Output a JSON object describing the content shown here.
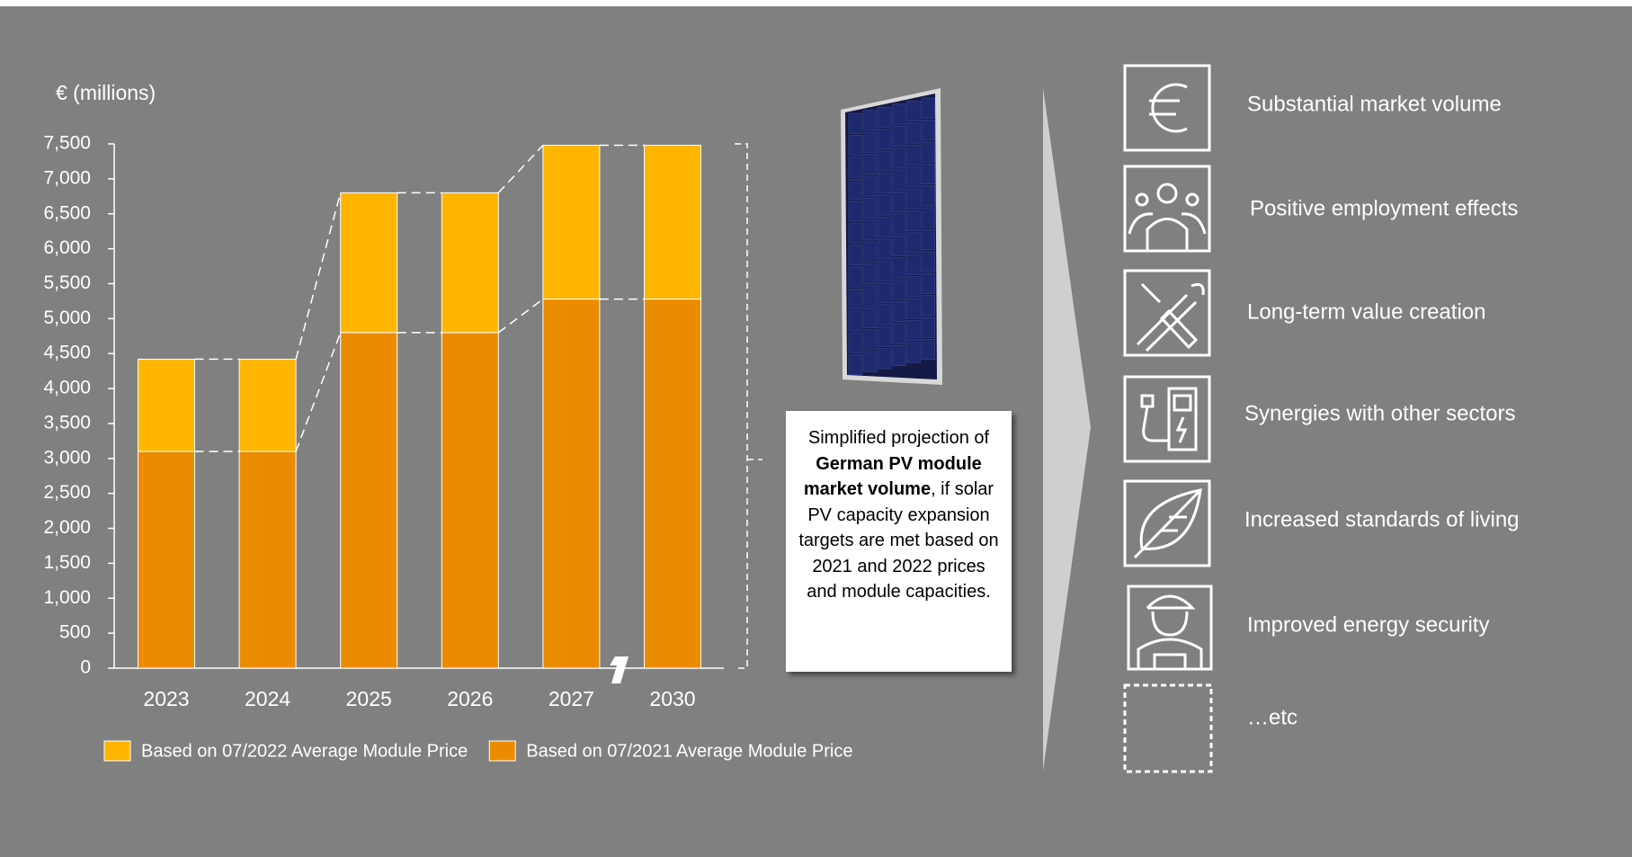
{
  "chart_data": {
    "type": "bar",
    "stacked": true,
    "y_label": "€ (millions)",
    "categories": [
      "2023",
      "2024",
      "2025",
      "2026",
      "2027",
      "2030"
    ],
    "series": [
      {
        "name": "Based on 07/2022 Average Module Price",
        "color": "#FFB600",
        "values": [
          1320,
          1320,
          2000,
          2000,
          2200,
          2200
        ]
      },
      {
        "name": "Based on 07/2021 Average Module Price",
        "color": "#EB8C00",
        "values": [
          3100,
          3100,
          4800,
          4800,
          5280,
          5280
        ]
      }
    ],
    "ylim": [
      0,
      7500
    ],
    "yticks": [
      0,
      500,
      {
        "value": 1000,
        "label": "1,000"
      },
      {
        "value": 1500,
        "label": "1,500"
      },
      {
        "value": 2000,
        "label": "2,000"
      },
      {
        "value": 2500,
        "label": "2,500"
      },
      {
        "value": 3000,
        "label": "3,000"
      },
      {
        "value": 3500,
        "label": "3,500"
      },
      {
        "value": 4000,
        "label": "4,000"
      },
      {
        "value": 4500,
        "label": "4,500"
      },
      {
        "value": 5000,
        "label": "5,000"
      },
      {
        "value": 5500,
        "label": "5,500"
      },
      {
        "value": 6000,
        "label": "6,000"
      },
      {
        "value": 6500,
        "label": "6,500"
      },
      {
        "value": 7000,
        "label": "7,000"
      },
      {
        "value": 7500,
        "label": "7,500"
      }
    ],
    "grid": false,
    "legend": "bottom"
  },
  "callout": {
    "before": "Simplified projection of ",
    "bold": "German PV module market volume",
    "after": ", if solar PV capacity expansion targets are met based on 2021 and 2022 prices and module capacities."
  },
  "benefits": [
    "Substantial market volume",
    "Positive employment effects",
    "Long-term value creation",
    "Synergies with other sectors",
    "Increased standards of living",
    "Improved energy security",
    "…etc"
  ]
}
